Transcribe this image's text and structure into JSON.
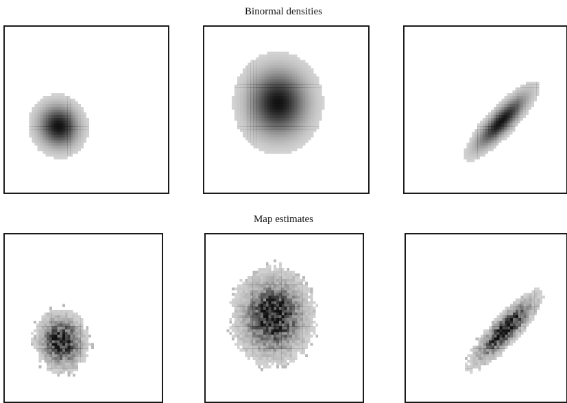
{
  "titles": {
    "top": "Binormal densities",
    "bottom": "Map estimates"
  },
  "panels": [
    {
      "id": "p-a",
      "kind": "binormal",
      "mean": [
        0.33,
        0.6
      ],
      "sd": [
        0.23,
        0.24
      ],
      "rho": 0.05
    },
    {
      "id": "p-b",
      "kind": "binormal",
      "mean": [
        0.45,
        0.46
      ],
      "sd": [
        0.34,
        0.38
      ],
      "rho": 0.0
    },
    {
      "id": "p-c",
      "kind": "binormal",
      "mean": [
        0.6,
        0.57
      ],
      "sd": [
        0.29,
        0.3
      ],
      "rho": -0.85
    },
    {
      "id": "p-d",
      "kind": "map",
      "mean": [
        0.36,
        0.64
      ],
      "sd": [
        0.22,
        0.24
      ],
      "rho": 0.05
    },
    {
      "id": "p-e",
      "kind": "map",
      "mean": [
        0.43,
        0.49
      ],
      "sd": [
        0.33,
        0.37
      ],
      "rho": 0.0
    },
    {
      "id": "p-f",
      "kind": "map",
      "mean": [
        0.62,
        0.57
      ],
      "sd": [
        0.29,
        0.3
      ],
      "rho": -0.85
    }
  ],
  "colors": {
    "ink": "#111111",
    "border": "#1a1a1a"
  }
}
